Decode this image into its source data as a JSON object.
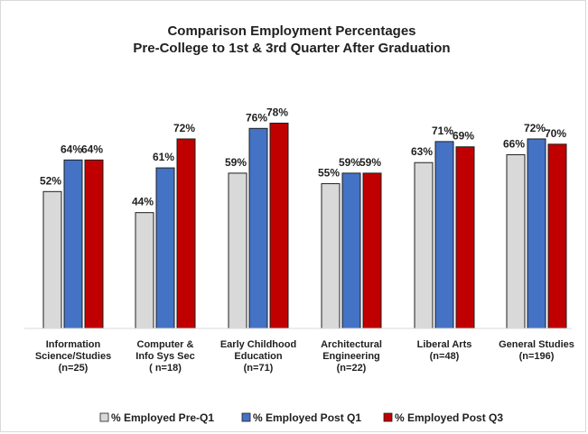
{
  "chart_data": {
    "type": "bar",
    "title_lines": [
      "Comparison Employment Percentages",
      "Pre-College to 1st & 3rd Quarter After Graduation"
    ],
    "categories": [
      [
        "Information",
        "Science/Studies",
        "(n=25)"
      ],
      [
        "Computer &",
        "Info Sys Sec",
        "( n=18)"
      ],
      [
        "Early Childhood",
        "Education",
        "(n=71)"
      ],
      [
        "Architectural",
        "Engineering",
        "(n=22)"
      ],
      [
        "Liberal Arts",
        "(n=48)"
      ],
      [
        "General Studies",
        "(n=196)"
      ]
    ],
    "series": [
      {
        "name": "% Employed Pre-Q1",
        "color": "#d9d9d9",
        "values": [
          52,
          44,
          59,
          55,
          63,
          66
        ],
        "labels": [
          "52%",
          "44%",
          "59%",
          "55%",
          "63%",
          "66%"
        ]
      },
      {
        "name": "% Employed Post Q1",
        "color": "#4472c4",
        "values": [
          64,
          61,
          76,
          59,
          71,
          72
        ],
        "labels": [
          "64%",
          "61%",
          "76%",
          "59%",
          "71%",
          "72%"
        ]
      },
      {
        "name": "% Employed Post Q3",
        "color": "#c00000",
        "values": [
          64,
          72,
          78,
          59,
          69,
          70
        ],
        "labels": [
          "64%",
          "72%",
          "78%",
          "59%",
          "69%",
          "70%"
        ]
      }
    ],
    "ylim": [
      0,
      100
    ],
    "grid": false,
    "legend_position": "bottom"
  }
}
